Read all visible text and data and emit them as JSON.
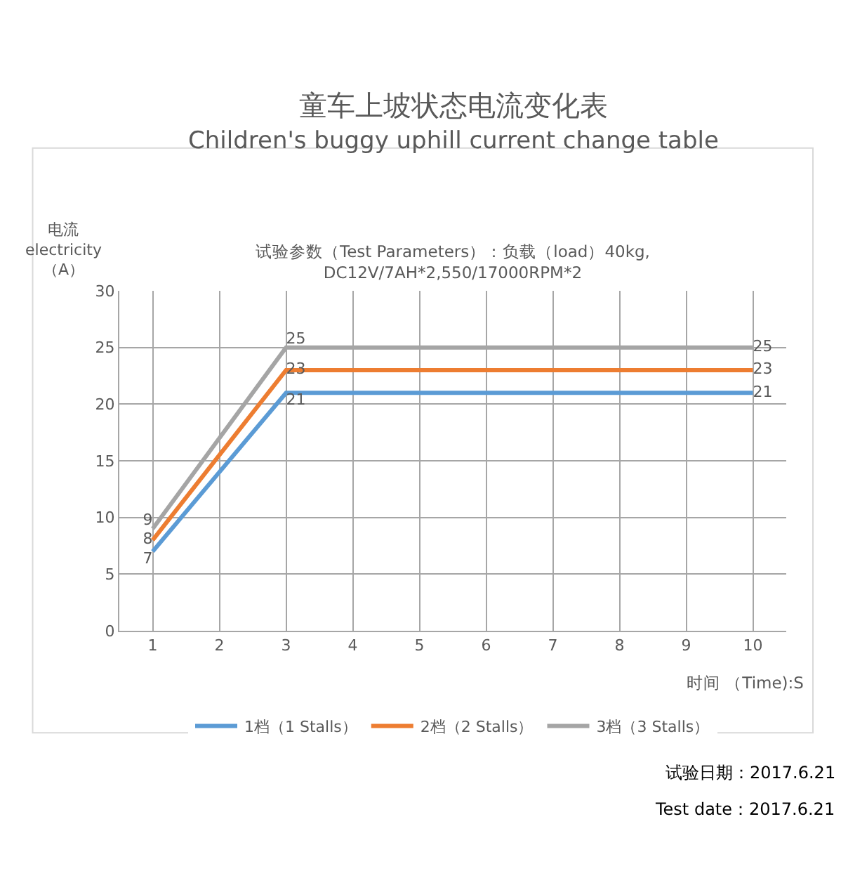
{
  "chart_data": {
    "type": "line",
    "title": "童车上坡状态电流变化表\nChildren's buggy uphill current change table",
    "subtitle": "试验参数（Test Parameters）：负载（load）40kg,\nDC12V/7AH*2,550/17000RPM*2",
    "xlabel": "时间 （Time):S",
    "ylabel": "电流\nelectricity\n（A）",
    "categories": [
      "1",
      "2",
      "3",
      "4",
      "5",
      "6",
      "7",
      "8",
      "9",
      "10"
    ],
    "series": [
      {
        "name": "1档（1 Stalls）",
        "color": "#5b9bd5",
        "values": [
          7,
          14,
          21,
          21,
          21,
          21,
          21,
          21,
          21,
          21
        ],
        "value_labels": [
          "7",
          null,
          "21",
          null,
          null,
          null,
          null,
          null,
          null,
          "21"
        ]
      },
      {
        "name": "2档（2 Stalls）",
        "color": "#ed7d31",
        "values": [
          8,
          15.5,
          23,
          23,
          23,
          23,
          23,
          23,
          23,
          23
        ],
        "value_labels": [
          "8",
          null,
          "23",
          null,
          null,
          null,
          null,
          null,
          null,
          "23"
        ]
      },
      {
        "name": "3档（3 Stalls）",
        "color": "#a5a5a5",
        "values": [
          9,
          17,
          25,
          25,
          25,
          25,
          25,
          25,
          25,
          25
        ],
        "value_labels": [
          "9",
          null,
          "25",
          null,
          null,
          null,
          null,
          null,
          null,
          "25"
        ]
      }
    ],
    "ylim": [
      0,
      30
    ],
    "yticks": [
      0,
      5,
      10,
      15,
      20,
      25,
      30
    ],
    "grid": true,
    "legend": "bottom",
    "marker": "none",
    "line_style": "solid",
    "annotations": [
      "试验日期：2017.6.21",
      "Test date：2017.6.21"
    ]
  }
}
